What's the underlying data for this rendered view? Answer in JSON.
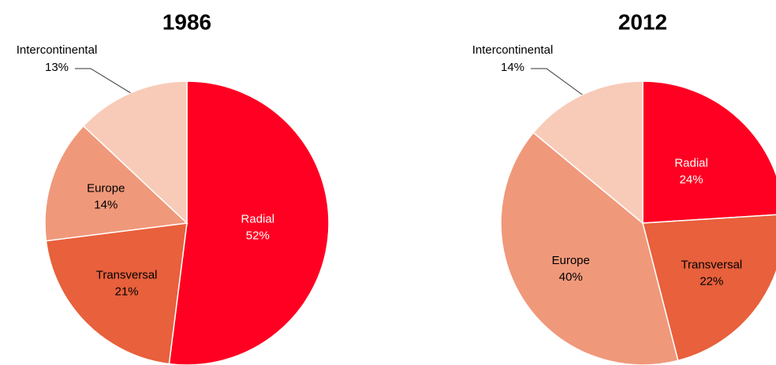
{
  "chart_data": [
    {
      "type": "pie",
      "title": "1986",
      "categories": [
        "Radial",
        "Transversal",
        "Europe",
        "Intercontinental"
      ],
      "values": [
        52,
        21,
        14,
        13
      ],
      "value_labels": [
        "52%",
        "21%",
        "14%",
        "13%"
      ],
      "colors": [
        "#ff0022",
        "#e8603c",
        "#f0987a",
        "#f8cbb8"
      ]
    },
    {
      "type": "pie",
      "title": "2012",
      "categories": [
        "Radial",
        "Transversal",
        "Europe",
        "Intercontinental"
      ],
      "values": [
        24,
        22,
        40,
        14
      ],
      "value_labels": [
        "24%",
        "22%",
        "40%",
        "14%"
      ],
      "colors": [
        "#ff0022",
        "#e8603c",
        "#f0987a",
        "#f8cbb8"
      ]
    }
  ]
}
